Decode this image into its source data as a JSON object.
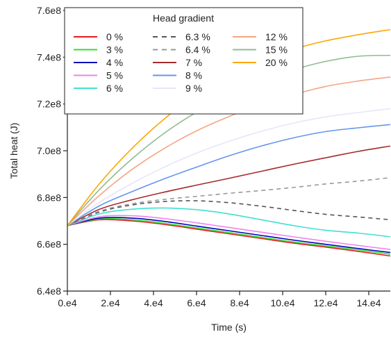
{
  "chart_data": {
    "type": "line",
    "xlabel": "Time (s)",
    "ylabel": "Total heat (J)",
    "xlim": [
      0,
      150000
    ],
    "ylim": [
      640000000,
      760000000
    ],
    "x_ticks": [
      0,
      20000,
      40000,
      60000,
      80000,
      100000,
      120000,
      140000
    ],
    "x_tick_labels": [
      "0.e4",
      "2.e4",
      "4.e4",
      "6.e4",
      "8.e4",
      "10.e4",
      "12.e4",
      "14.e4"
    ],
    "y_ticks": [
      640000000,
      660000000,
      680000000,
      700000000,
      720000000,
      740000000,
      760000000
    ],
    "y_tick_labels": [
      "6.4e8",
      "6.6e8",
      "6.8e8",
      "7.0e8",
      "7.2e8",
      "7.4e8",
      "7.6e8"
    ],
    "grid": false,
    "legend": {
      "title": "Head gradient",
      "placement": "top-right",
      "columns": 3
    },
    "x": [
      0,
      15000,
      30000,
      45000,
      60000,
      75000,
      90000,
      105000,
      120000,
      135000,
      150000
    ],
    "series": [
      {
        "name": "0 %",
        "color": "#e41a1c",
        "dash": "solid",
        "values": [
          668000000,
          670500000,
          670000000,
          668500000,
          666500000,
          664500000,
          662500000,
          660500000,
          658800000,
          657000000,
          655000000
        ]
      },
      {
        "name": "3 %",
        "color": "#33dd33",
        "dash": "solid",
        "values": [
          668000000,
          670800000,
          670500000,
          669000000,
          667000000,
          665000000,
          663000000,
          661000000,
          659300000,
          657600000,
          655800000
        ]
      },
      {
        "name": "4 %",
        "color": "#0000bb",
        "dash": "solid",
        "values": [
          668000000,
          671200000,
          671200000,
          669800000,
          667800000,
          665800000,
          663800000,
          661800000,
          660000000,
          658200000,
          656500000
        ]
      },
      {
        "name": "5 %",
        "color": "#ee82ee",
        "dash": "solid",
        "values": [
          668000000,
          671800000,
          672200000,
          671000000,
          669200000,
          667200000,
          665200000,
          663200000,
          661300000,
          659500000,
          657800000
        ]
      },
      {
        "name": "6 %",
        "color": "#40e0d0",
        "dash": "solid",
        "values": [
          668000000,
          673000000,
          675000000,
          675500000,
          674800000,
          673000000,
          670500000,
          668000000,
          666000000,
          664800000,
          663200000
        ]
      },
      {
        "name": "6.3 %",
        "color": "#555555",
        "dash": "dashed",
        "values": [
          668000000,
          673800000,
          676800000,
          678300000,
          678600000,
          677800000,
          676300000,
          674500000,
          672800000,
          671700000,
          670500000
        ]
      },
      {
        "name": "6.4 %",
        "color": "#999999",
        "dash": "dashed",
        "values": [
          668000000,
          674200000,
          677300000,
          679200000,
          680500000,
          681800000,
          683000000,
          684300000,
          685800000,
          687000000,
          688500000
        ]
      },
      {
        "name": "7 %",
        "color": "#a52a2a",
        "dash": "solid",
        "values": [
          668000000,
          675000000,
          679000000,
          682300000,
          685300000,
          688200000,
          691200000,
          694200000,
          697000000,
          699700000,
          702000000
        ]
      },
      {
        "name": "8 %",
        "color": "#6495ed",
        "dash": "solid",
        "values": [
          668000000,
          676500000,
          682500000,
          688000000,
          693000000,
          697800000,
          702000000,
          705500000,
          708200000,
          709800000,
          711200000
        ]
      },
      {
        "name": "9 %",
        "color": "#e6e6fa",
        "dash": "solid",
        "values": [
          668000000,
          678000000,
          686000000,
          693000000,
          699000000,
          704000000,
          708300000,
          711800000,
          714500000,
          716300000,
          718000000
        ]
      },
      {
        "name": "12 %",
        "color": "#f4a582",
        "dash": "solid",
        "values": [
          668000000,
          681000000,
          692000000,
          701000000,
          708500000,
          714600000,
          719800000,
          724000000,
          727500000,
          729800000,
          731500000
        ]
      },
      {
        "name": "15 %",
        "color": "#8fbc8f",
        "dash": "solid",
        "values": [
          668000000,
          683500000,
          696500000,
          707500000,
          716500000,
          723800000,
          729800000,
          734600000,
          738200000,
          740400000,
          740800000
        ]
      },
      {
        "name": "20 %",
        "color": "#ffa500",
        "dash": "solid",
        "values": [
          668000000,
          686000000,
          701000000,
          713600000,
          724000000,
          732300000,
          738700000,
          743400000,
          747000000,
          749600000,
          751800000
        ]
      }
    ]
  }
}
